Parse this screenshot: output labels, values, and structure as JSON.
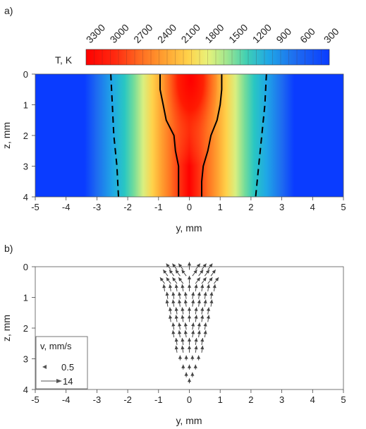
{
  "panel_labels": [
    "a)",
    "b)"
  ],
  "colorbar": {
    "label": "T, K",
    "ticks": [
      "3300",
      "3000",
      "2700",
      "2400",
      "2100",
      "1800",
      "1500",
      "1200",
      "900",
      "600",
      "300"
    ],
    "min": 300,
    "max": 3300
  },
  "colors": {
    "hot": "#ff0000",
    "cold": "#0a3cff",
    "contour": "#000000",
    "arrow": "#444444"
  },
  "chart_data": [
    {
      "type": "heatmap",
      "panel": "a)",
      "xlabel": "y, mm",
      "ylabel": "z, mm",
      "xlim": [
        -5,
        5
      ],
      "ylim": [
        4,
        0
      ],
      "xticks": [
        "-5",
        "-4",
        "-3",
        "-2",
        "-1",
        "0",
        "1",
        "2",
        "3",
        "4",
        "5"
      ],
      "yticks": [
        "0",
        "1",
        "2",
        "3",
        "4"
      ],
      "value_label": "T, K",
      "value_range": [
        300,
        3300
      ],
      "melt_boundary_solid": {
        "left": [
          [
            -0.95,
            0
          ],
          [
            -0.95,
            0.5
          ],
          [
            -0.85,
            1
          ],
          [
            -0.75,
            1.5
          ],
          [
            -0.5,
            2
          ],
          [
            -0.45,
            2.5
          ],
          [
            -0.35,
            3
          ],
          [
            -0.35,
            3.5
          ],
          [
            -0.35,
            4
          ]
        ],
        "right": [
          [
            1.05,
            0
          ],
          [
            1.05,
            0.5
          ],
          [
            1.0,
            1
          ],
          [
            0.9,
            1.5
          ],
          [
            0.7,
            2
          ],
          [
            0.6,
            2.5
          ],
          [
            0.45,
            3
          ],
          [
            0.4,
            3.5
          ],
          [
            0.4,
            4
          ]
        ]
      },
      "melt_boundary_dashed": {
        "left": [
          [
            -2.55,
            0
          ],
          [
            -2.5,
            1
          ],
          [
            -2.45,
            2
          ],
          [
            -2.35,
            3
          ],
          [
            -2.3,
            4
          ]
        ],
        "right": [
          [
            2.5,
            0
          ],
          [
            2.45,
            1
          ],
          [
            2.35,
            2
          ],
          [
            2.25,
            3
          ],
          [
            2.15,
            4
          ]
        ]
      }
    },
    {
      "type": "scatter",
      "panel": "b)",
      "xlabel": "y, mm",
      "ylabel": "z, mm",
      "xlim": [
        -5,
        5
      ],
      "ylim": [
        4,
        0
      ],
      "xticks": [
        "-5",
        "-4",
        "-3",
        "-2",
        "-1",
        "0",
        "1",
        "2",
        "3",
        "4",
        "5"
      ],
      "yticks": [
        "0",
        "1",
        "2",
        "3",
        "4"
      ],
      "legend": {
        "title": "v, mm/s",
        "entries": [
          {
            "value": 0.5,
            "label": "0.5"
          },
          {
            "value": 14,
            "label": "14"
          }
        ]
      },
      "vector_rows": [
        {
          "z": 0.1,
          "y": [
            -0.6,
            -0.4,
            -0.2,
            0,
            0.2,
            0.4,
            0.6
          ],
          "dir": "up-out"
        },
        {
          "z": 0.3,
          "y": [
            -0.7,
            -0.5,
            -0.3,
            -0.1,
            0.1,
            0.3,
            0.5,
            0.7
          ],
          "dir": "up-out"
        },
        {
          "z": 0.55,
          "y": [
            -0.8,
            -0.6,
            -0.4,
            -0.2,
            0,
            0.2,
            0.4,
            0.6,
            0.8
          ],
          "dir": "up-out"
        },
        {
          "z": 0.8,
          "y": [
            -0.8,
            -0.6,
            -0.4,
            -0.2,
            0,
            0.2,
            0.4,
            0.6,
            0.8
          ],
          "dir": "up"
        },
        {
          "z": 1.05,
          "y": [
            -0.7,
            -0.5,
            -0.3,
            -0.1,
            0.1,
            0.3,
            0.5,
            0.7
          ],
          "dir": "up"
        },
        {
          "z": 1.3,
          "y": [
            -0.7,
            -0.5,
            -0.3,
            -0.1,
            0.1,
            0.3,
            0.5,
            0.7
          ],
          "dir": "up"
        },
        {
          "z": 1.55,
          "y": [
            -0.6,
            -0.4,
            -0.2,
            0,
            0.2,
            0.4,
            0.6
          ],
          "dir": "up"
        },
        {
          "z": 1.8,
          "y": [
            -0.6,
            -0.4,
            -0.2,
            0,
            0.2,
            0.4,
            0.6
          ],
          "dir": "up"
        },
        {
          "z": 2.05,
          "y": [
            -0.5,
            -0.3,
            -0.1,
            0.1,
            0.3,
            0.5
          ],
          "dir": "up"
        },
        {
          "z": 2.3,
          "y": [
            -0.5,
            -0.3,
            -0.1,
            0.1,
            0.3,
            0.5
          ],
          "dir": "up"
        },
        {
          "z": 2.55,
          "y": [
            -0.4,
            -0.2,
            0,
            0.2,
            0.4
          ],
          "dir": "up"
        },
        {
          "z": 2.8,
          "y": [
            -0.4,
            -0.2,
            0,
            0.2,
            0.4
          ],
          "dir": "up"
        },
        {
          "z": 3.05,
          "y": [
            -0.3,
            -0.1,
            0.1,
            0.3
          ],
          "dir": "up-small"
        },
        {
          "z": 3.35,
          "y": [
            -0.2,
            0,
            0.2
          ],
          "dir": "up-small"
        },
        {
          "z": 3.6,
          "y": [
            -0.1,
            0.1
          ],
          "dir": "up-small"
        },
        {
          "z": 3.8,
          "y": [
            0
          ],
          "dir": "up-small"
        }
      ]
    }
  ]
}
